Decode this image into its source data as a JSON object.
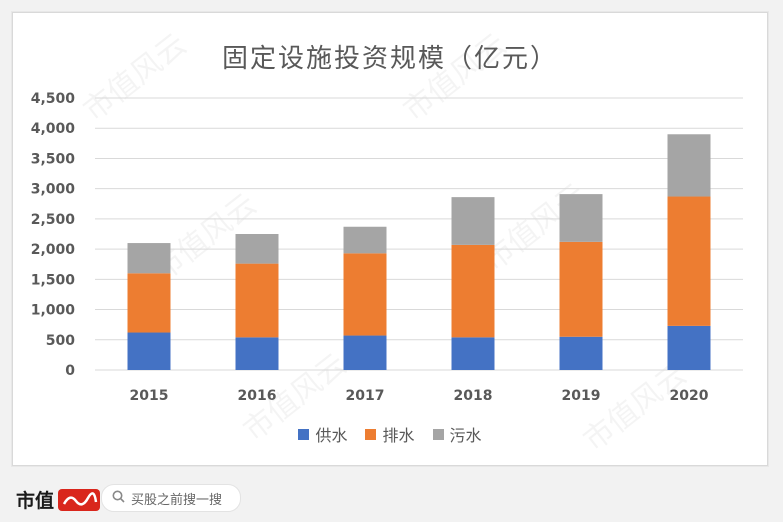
{
  "chart_data": {
    "type": "bar",
    "stacked": true,
    "title": "固定设施投资规模（亿元）",
    "categories": [
      "2015",
      "2016",
      "2017",
      "2018",
      "2019",
      "2020"
    ],
    "series": [
      {
        "name": "供水",
        "color": "#4472c4",
        "values": [
          620,
          540,
          570,
          540,
          550,
          730
        ]
      },
      {
        "name": "排水",
        "color": "#ed7d31",
        "values": [
          980,
          1220,
          1360,
          1530,
          1570,
          2140
        ]
      },
      {
        "name": "污水",
        "color": "#a5a5a5",
        "values": [
          500,
          490,
          440,
          790,
          790,
          1030
        ]
      }
    ],
    "ylim": [
      0,
      4500
    ],
    "yticks": [
      "0",
      "500",
      "1,000",
      "1,500",
      "2,000",
      "2,500",
      "3,000",
      "3,500",
      "4,000",
      "4,500"
    ],
    "ytick_values": [
      0,
      500,
      1000,
      1500,
      2000,
      2500,
      3000,
      3500,
      4000,
      4500
    ],
    "xlabel": "",
    "ylabel": "",
    "grid": true,
    "legend_position": "bottom"
  },
  "watermark": "市值风云",
  "footer": {
    "brand": "市值",
    "search_placeholder": "买股之前搜一搜"
  }
}
